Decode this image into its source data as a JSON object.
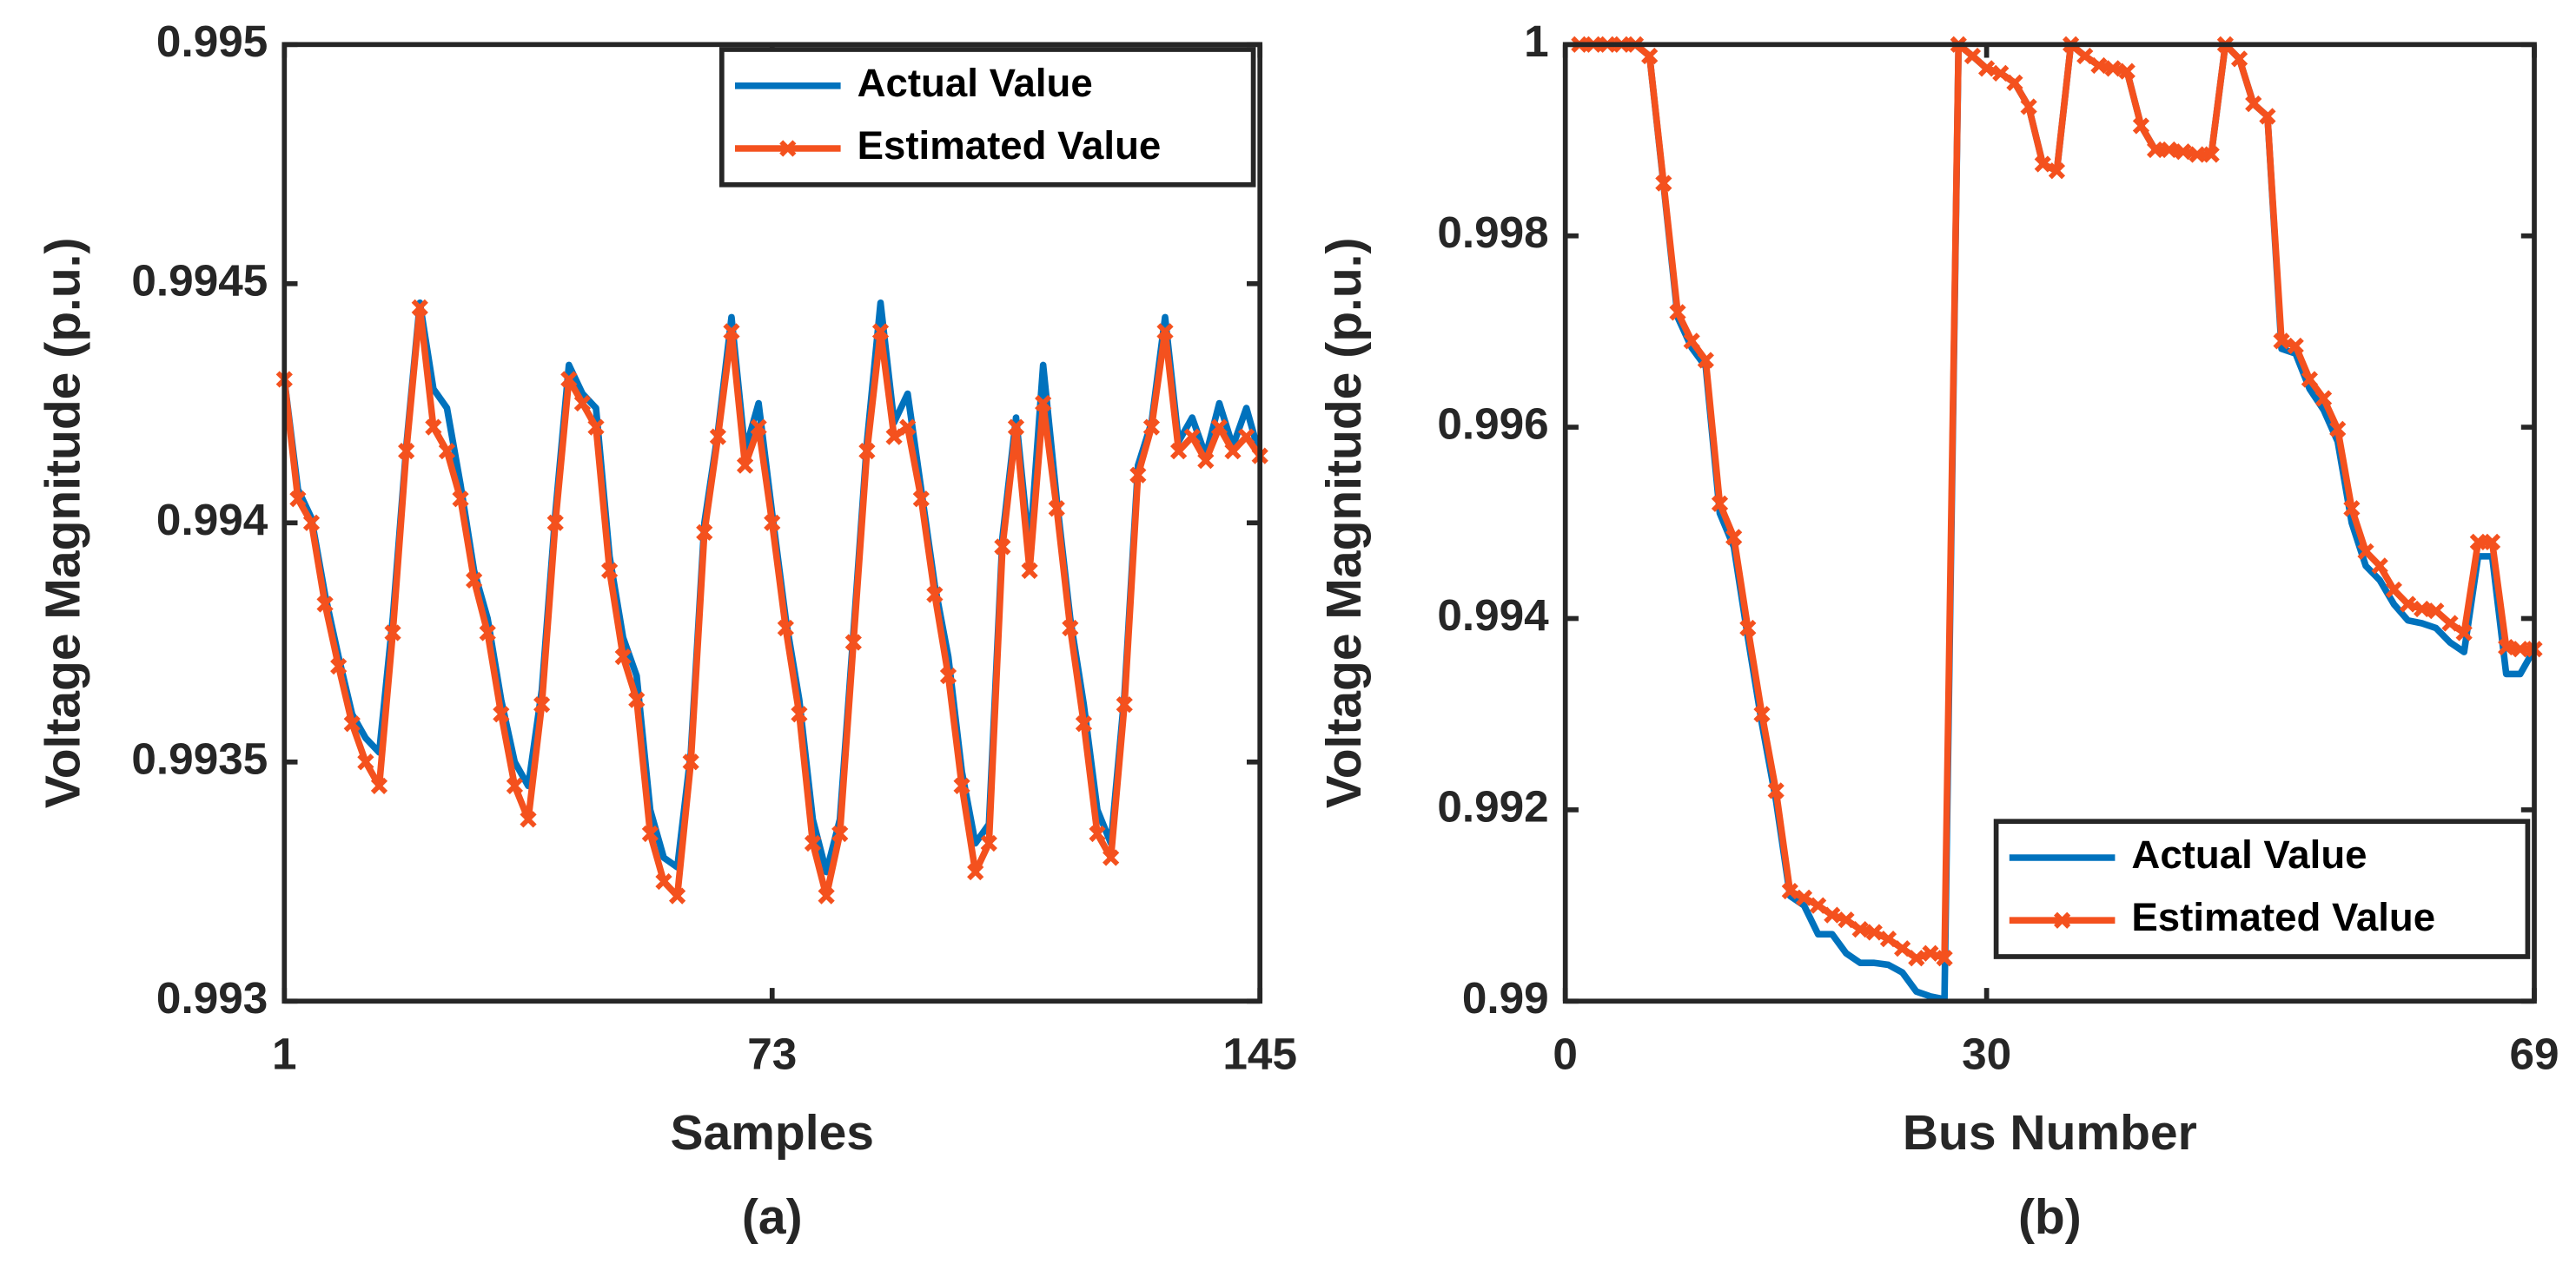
{
  "chart_data": [
    {
      "type": "line",
      "caption": "(a)",
      "xlabel": "Samples",
      "ylabel": "Voltage Magnitude (p.u.)",
      "xlim": [
        1,
        145
      ],
      "xticks": [
        1,
        73,
        145
      ],
      "ylim": [
        0.993,
        0.995
      ],
      "yticks": [
        0.993,
        0.9935,
        0.994,
        0.9945,
        0.995
      ],
      "legend": "upper right",
      "x": [
        1,
        3,
        5,
        7,
        9,
        11,
        13,
        15,
        17,
        19,
        21,
        23,
        25,
        27,
        29,
        31,
        33,
        35,
        37,
        39,
        41,
        43,
        45,
        47,
        49,
        51,
        53,
        55,
        57,
        59,
        61,
        63,
        65,
        67,
        69,
        71,
        73,
        75,
        77,
        79,
        81,
        83,
        85,
        87,
        89,
        91,
        93,
        95,
        97,
        99,
        101,
        103,
        105,
        107,
        109,
        111,
        113,
        115,
        117,
        119,
        121,
        123,
        125,
        127,
        129,
        131,
        133,
        135,
        137,
        139,
        141,
        143,
        145
      ],
      "series": [
        {
          "name": "Actual Value",
          "color": "#0072bd",
          "marker": false,
          "values": [
            0.9943,
            0.99407,
            0.99401,
            0.99385,
            0.99372,
            0.9936,
            0.99355,
            0.99352,
            0.9938,
            0.99416,
            0.99446,
            0.99428,
            0.99424,
            0.99408,
            0.9939,
            0.9938,
            0.99363,
            0.9935,
            0.99345,
            0.99365,
            0.99402,
            0.99433,
            0.99427,
            0.99424,
            0.99393,
            0.99376,
            0.99368,
            0.9934,
            0.9933,
            0.99328,
            0.99352,
            0.994,
            0.99419,
            0.99443,
            0.99415,
            0.99425,
            0.99402,
            0.9938,
            0.99363,
            0.99338,
            0.99327,
            0.99338,
            0.99377,
            0.99417,
            0.99446,
            0.99421,
            0.99427,
            0.99407,
            0.99387,
            0.99372,
            0.99348,
            0.99333,
            0.99337,
            0.99397,
            0.99422,
            0.99394,
            0.99433,
            0.99405,
            0.9938,
            0.99362,
            0.9934,
            0.99333,
            0.99364,
            0.99412,
            0.99421,
            0.99443,
            0.99417,
            0.99422,
            0.99414,
            0.99425,
            0.99416,
            0.99424,
            0.99414
          ]
        },
        {
          "name": "Estimated Value",
          "color": "#f4511e",
          "marker": true,
          "values": [
            0.9943,
            0.99405,
            0.994,
            0.99383,
            0.9937,
            0.99358,
            0.9935,
            0.99345,
            0.99377,
            0.99415,
            0.99445,
            0.9942,
            0.99415,
            0.99405,
            0.99388,
            0.99377,
            0.9936,
            0.99345,
            0.99338,
            0.99362,
            0.994,
            0.9943,
            0.99425,
            0.9942,
            0.9939,
            0.99372,
            0.99363,
            0.99335,
            0.99325,
            0.99322,
            0.9935,
            0.99398,
            0.99418,
            0.9944,
            0.99412,
            0.9942,
            0.994,
            0.99378,
            0.9936,
            0.99333,
            0.99322,
            0.99335,
            0.99375,
            0.99415,
            0.9944,
            0.99418,
            0.9942,
            0.99405,
            0.99385,
            0.99368,
            0.99345,
            0.99327,
            0.99333,
            0.99395,
            0.9942,
            0.9939,
            0.99425,
            0.99403,
            0.99378,
            0.99358,
            0.99335,
            0.9933,
            0.99362,
            0.9941,
            0.9942,
            0.9944,
            0.99415,
            0.99418,
            0.99413,
            0.9942,
            0.99415,
            0.99418,
            0.99414
          ]
        }
      ]
    },
    {
      "type": "line",
      "caption": "(b)",
      "xlabel": "Bus Number",
      "ylabel": "Voltage Magnitude (p.u.)",
      "xlim": [
        0,
        69
      ],
      "xticks": [
        0,
        30,
        69
      ],
      "ylim": [
        0.99,
        1
      ],
      "yticks": [
        0.99,
        0.992,
        0.994,
        0.996,
        0.998,
        1
      ],
      "legend": "lower right",
      "x": [
        1,
        2,
        3,
        4,
        5,
        6,
        7,
        8,
        9,
        10,
        11,
        12,
        13,
        14,
        15,
        16,
        17,
        18,
        19,
        20,
        21,
        22,
        23,
        24,
        25,
        26,
        27,
        28,
        29,
        30,
        31,
        32,
        33,
        34,
        35,
        36,
        37,
        38,
        39,
        40,
        41,
        42,
        43,
        44,
        45,
        46,
        47,
        48,
        49,
        50,
        51,
        52,
        53,
        54,
        55,
        56,
        57,
        58,
        59,
        60,
        61,
        62,
        63,
        64,
        65,
        66,
        67,
        68,
        69
      ],
      "series": [
        {
          "name": "Actual Value",
          "color": "#0072bd",
          "marker": false,
          "values": [
            1,
            1,
            1,
            1,
            1,
            0.99988,
            0.99853,
            0.99715,
            0.99683,
            0.99663,
            0.9951,
            0.99475,
            0.9938,
            0.9929,
            0.9921,
            0.9911,
            0.991,
            0.9907,
            0.9907,
            0.9905,
            0.9904,
            0.9904,
            0.99038,
            0.9903,
            0.9901,
            0.99005,
            0.99002,
            1,
            0.99988,
            0.99975,
            0.9997,
            0.9996,
            0.99935,
            0.99875,
            0.99868,
            1,
            0.99988,
            0.99978,
            0.99975,
            0.99972,
            0.99915,
            0.9989,
            0.9989,
            0.99888,
            0.99885,
            0.99885,
            1,
            0.99985,
            0.99938,
            0.99925,
            0.99682,
            0.99677,
            0.9964,
            0.99618,
            0.99585,
            0.995,
            0.99455,
            0.9944,
            0.99415,
            0.99398,
            0.99395,
            0.9939,
            0.99375,
            0.99365,
            0.99465,
            0.99465,
            0.99342,
            0.99342,
            0.99368
          ]
        },
        {
          "name": "Estimated Value",
          "color": "#f4511e",
          "marker": true,
          "values": [
            1,
            1,
            1,
            1,
            1,
            0.99988,
            0.99855,
            0.9972,
            0.9969,
            0.9967,
            0.9952,
            0.99485,
            0.9939,
            0.993,
            0.9922,
            0.99115,
            0.99108,
            0.991,
            0.9909,
            0.99085,
            0.99075,
            0.99072,
            0.99065,
            0.99055,
            0.99045,
            0.9905,
            0.99045,
            1,
            0.99988,
            0.99975,
            0.9997,
            0.9996,
            0.99935,
            0.99875,
            0.99868,
            1,
            0.99988,
            0.99978,
            0.99975,
            0.99972,
            0.99915,
            0.9989,
            0.9989,
            0.99888,
            0.99885,
            0.99885,
            1,
            0.99985,
            0.99938,
            0.99925,
            0.9969,
            0.99685,
            0.9965,
            0.9963,
            0.99598,
            0.99515,
            0.9947,
            0.99455,
            0.9943,
            0.99415,
            0.9941,
            0.99408,
            0.99395,
            0.99385,
            0.9948,
            0.9948,
            0.9937,
            0.99368,
            0.99368
          ]
        }
      ]
    }
  ]
}
